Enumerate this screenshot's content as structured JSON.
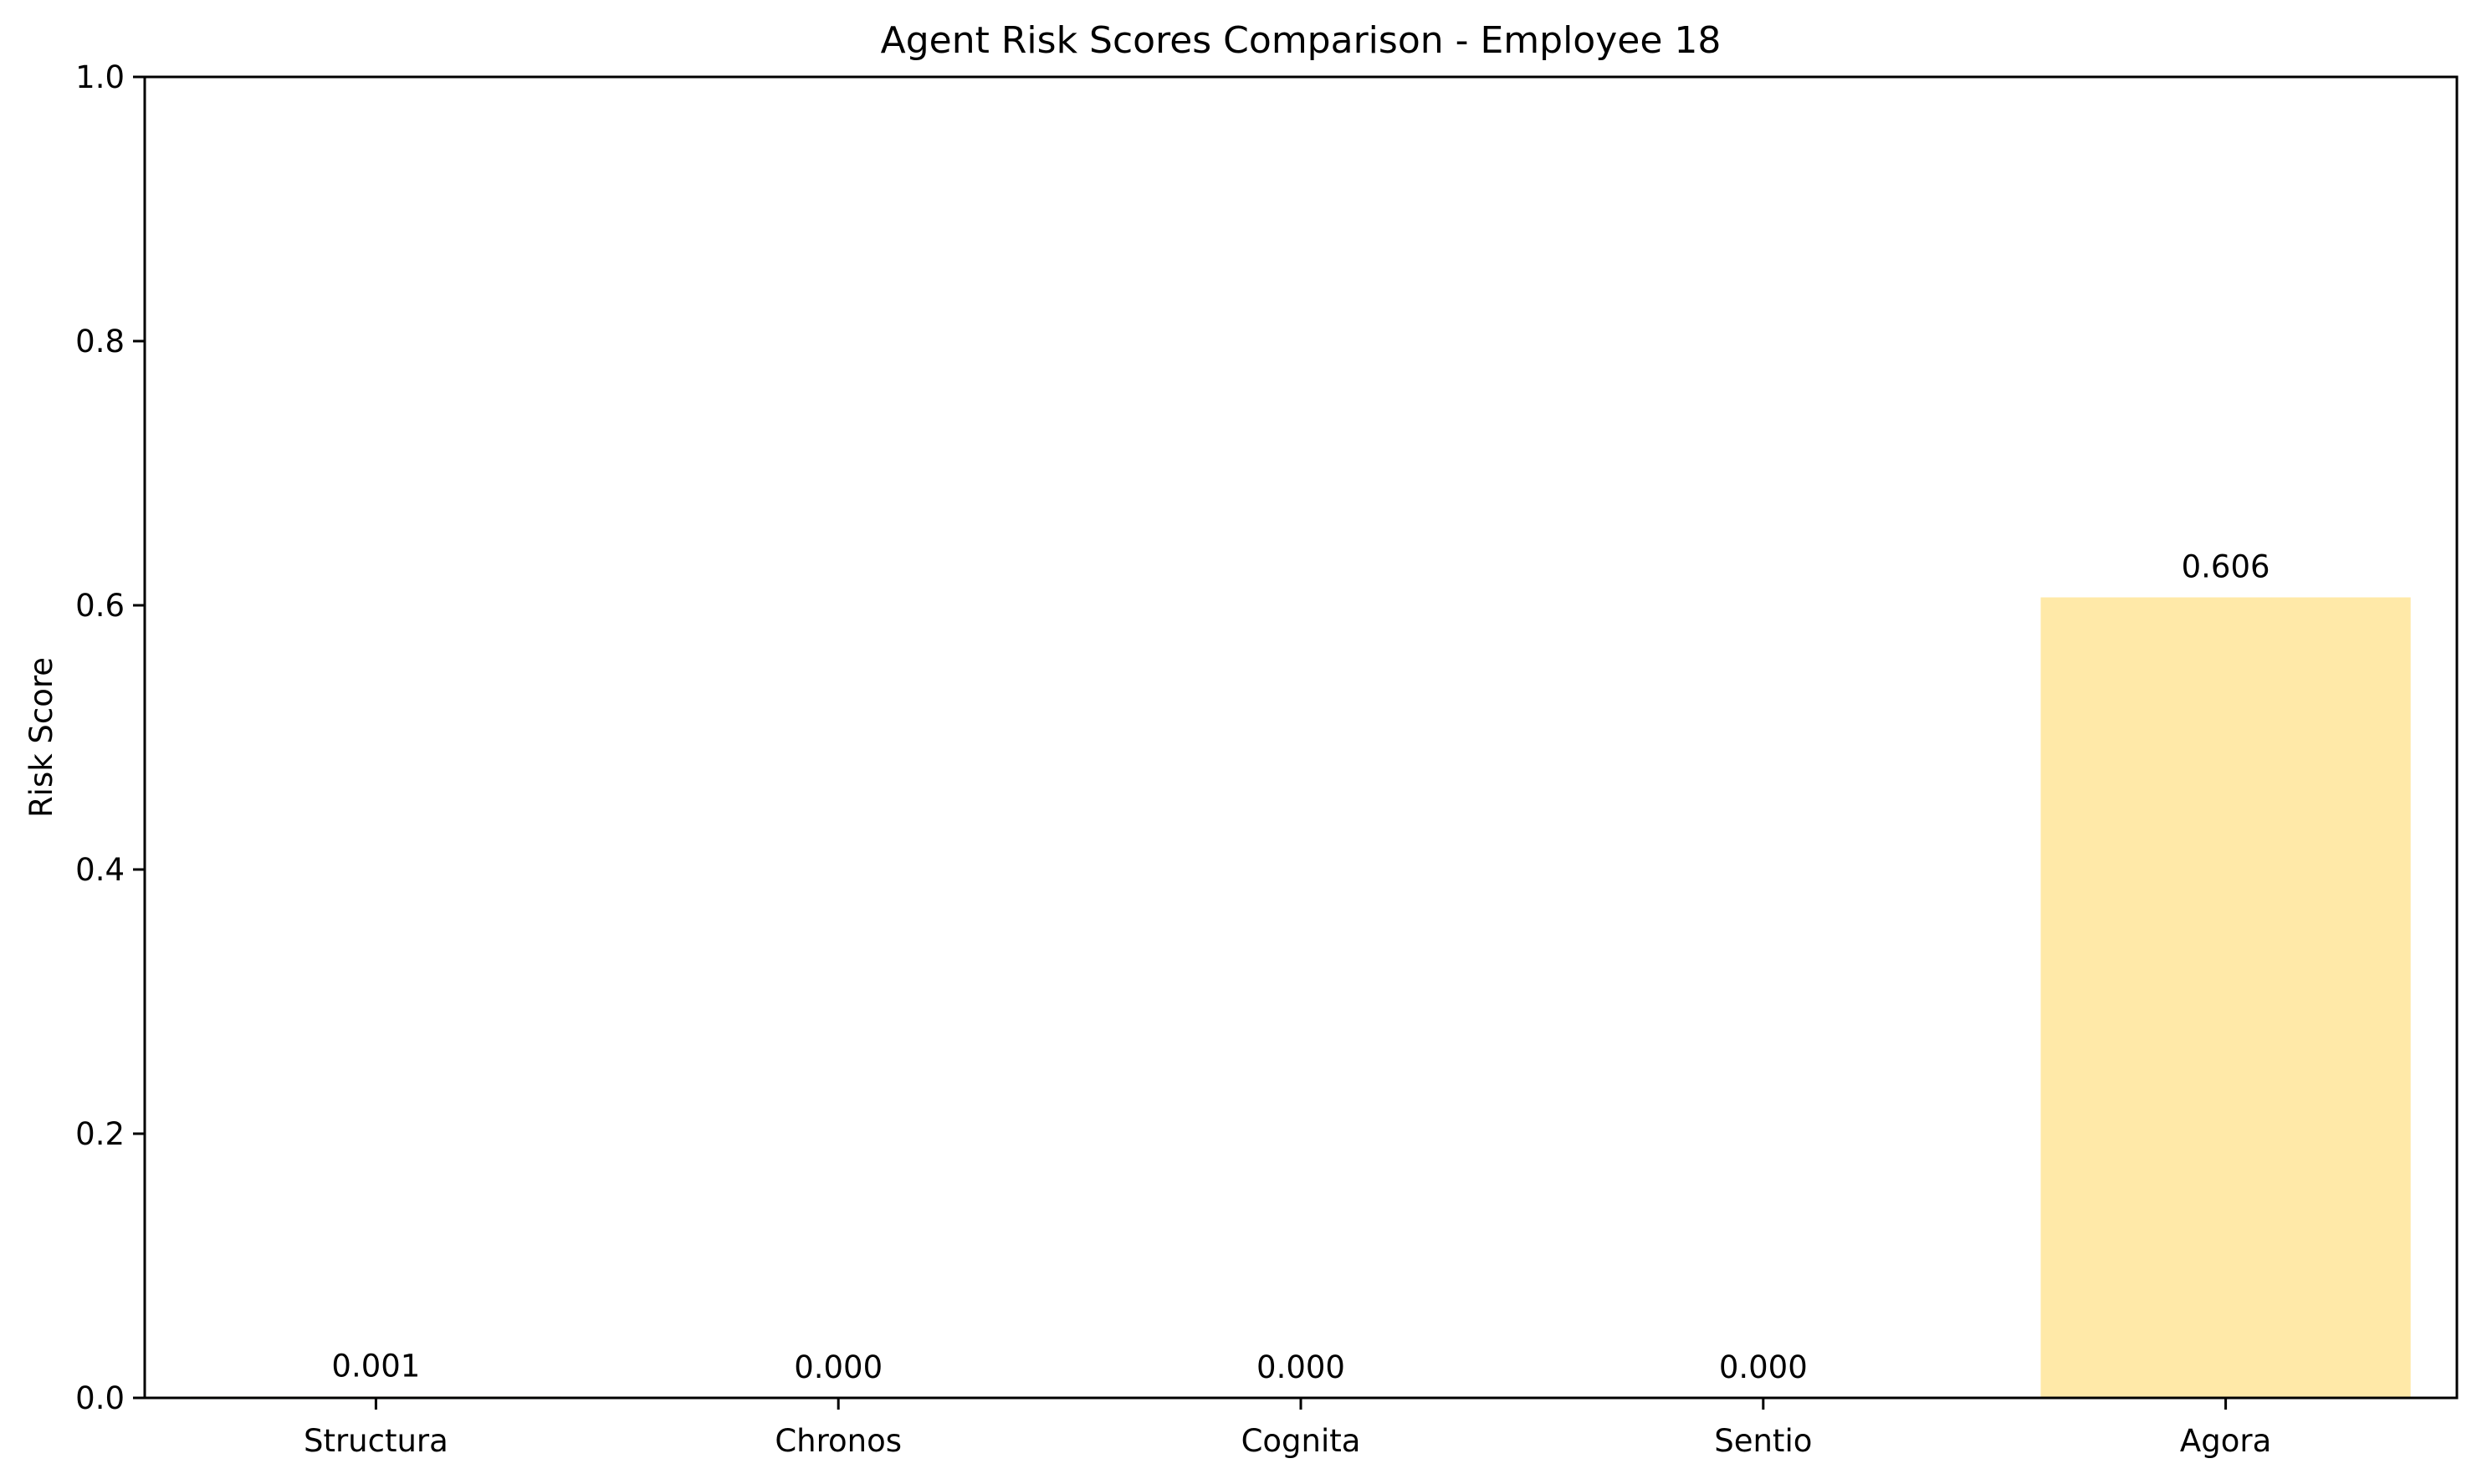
{
  "chart_data": {
    "type": "bar",
    "title": "Agent Risk Scores Comparison - Employee 18",
    "xlabel": "",
    "ylabel": "Risk Score",
    "categories": [
      "Structura",
      "Chronos",
      "Cognita",
      "Sentio",
      "Agora"
    ],
    "values": [
      0.001,
      0.0,
      0.0,
      0.0,
      0.606
    ],
    "value_labels": [
      "0.001",
      "0.000",
      "0.000",
      "0.000",
      "0.606"
    ],
    "ylim": [
      0,
      1.0
    ],
    "yticks": [
      0.0,
      0.2,
      0.4,
      0.6,
      0.8,
      1.0
    ],
    "ytick_labels": [
      "0.0",
      "0.2",
      "0.4",
      "0.6",
      "0.8",
      "1.0"
    ],
    "bar_colors": [
      "#FFE9A8",
      "#FFE9A8",
      "#FFE9A8",
      "#FFE9A8",
      "#FFE9A8"
    ],
    "grid": false,
    "legend": "none"
  }
}
